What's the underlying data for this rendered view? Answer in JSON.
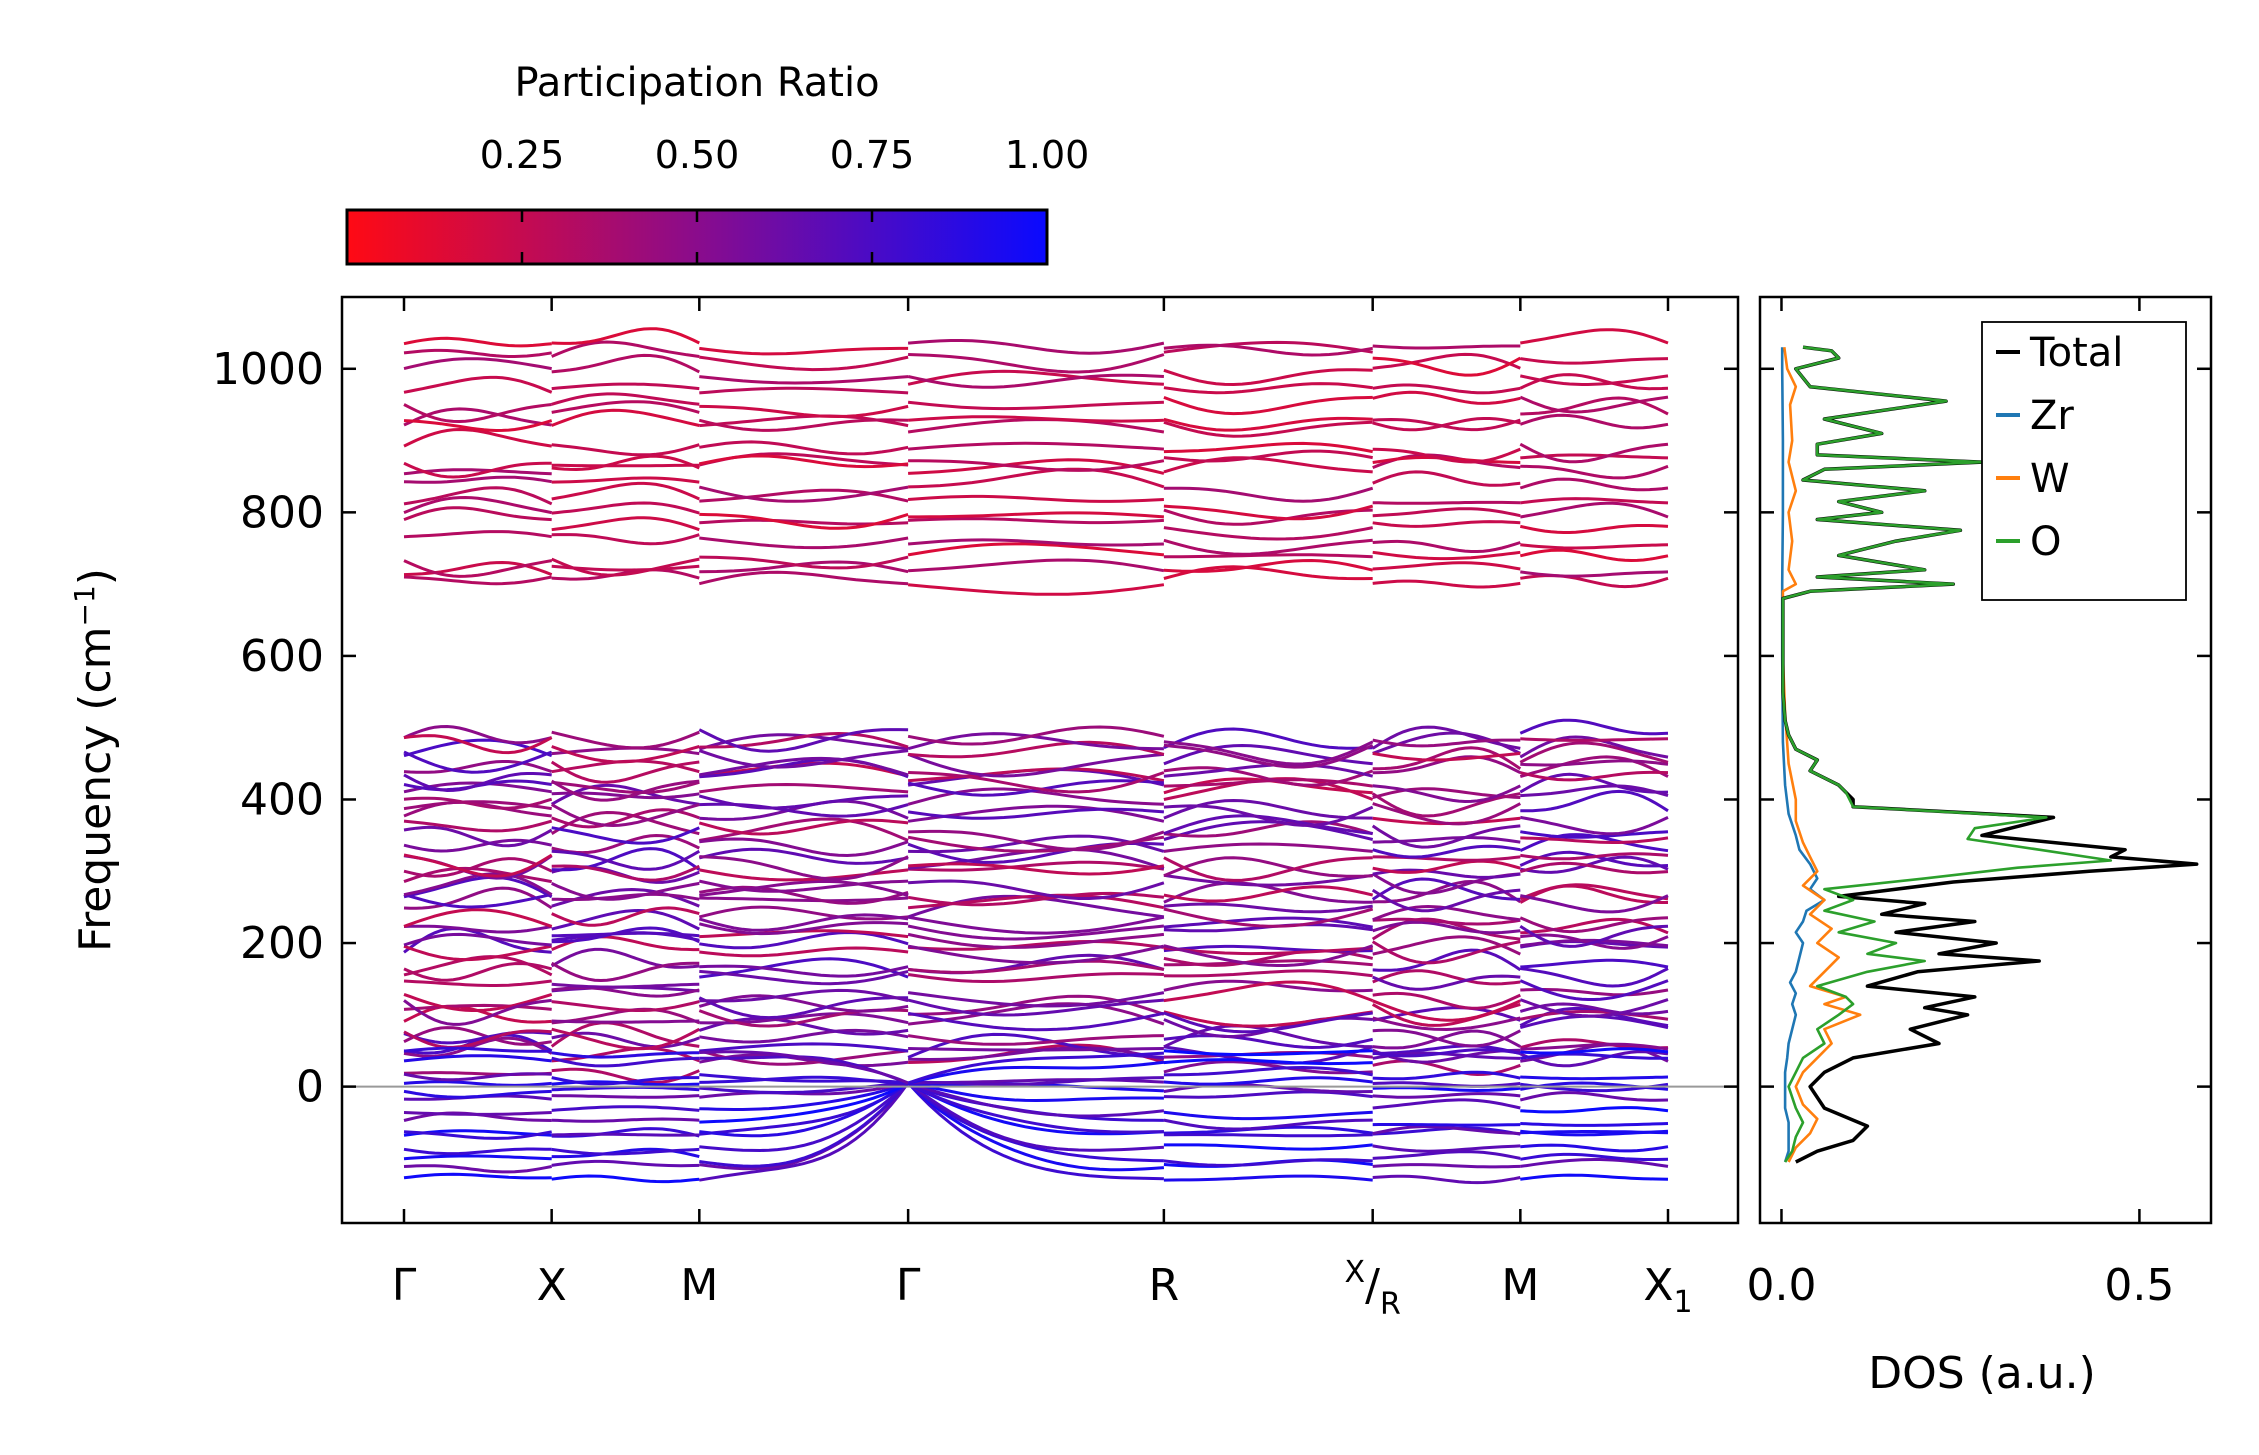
{
  "chart_data": [
    {
      "type": "line",
      "subtype": "phonon-dispersion",
      "title": "",
      "xlabel": "",
      "ylabel": "Frequency (cm",
      "ylabel_sup": "−1",
      "ylabel_close": ")",
      "ylim": [
        -190,
        1100
      ],
      "yticks": [
        0,
        200,
        400,
        600,
        800,
        1000
      ],
      "ytick_labels": [
        "0",
        "200",
        "400",
        "600",
        "800",
        "1000"
      ],
      "kpath": [
        {
          "label": "Γ",
          "sub": "",
          "pos": 0.0
        },
        {
          "label": "X",
          "sub": "",
          "pos": 0.5
        },
        {
          "label": "M",
          "sub": "",
          "pos": 1.0
        },
        {
          "label": "Γ",
          "sub": "",
          "pos": 1.7071
        },
        {
          "label": "R",
          "sub": "",
          "pos": 2.5731
        },
        {
          "label": "X/R",
          "sub": "",
          "pos": 3.2802
        },
        {
          "label": "M",
          "sub": "",
          "pos": 3.7802
        },
        {
          "label": "X",
          "sub": "1",
          "pos": 4.2802
        }
      ],
      "segments": [
        [
          0.0,
          0.5
        ],
        [
          0.5,
          1.0
        ],
        [
          1.0,
          1.7071
        ],
        [
          1.7071,
          2.5731
        ],
        [
          2.5731,
          3.2802
        ],
        [
          3.2802,
          3.7802
        ],
        [
          3.7802,
          4.2802
        ]
      ],
      "zero_line": 0,
      "color_variable": "Participation Ratio",
      "colorbar": {
        "title": "Participation Ratio",
        "range": [
          0.0,
          1.0
        ],
        "ticks": [
          0.25,
          0.5,
          0.75,
          1.0
        ],
        "tick_labels": [
          "0.25",
          "0.50",
          "0.75",
          "1.00"
        ],
        "color_low": "#ff0a14",
        "color_mid": "#8a0c8c",
        "color_high": "#0a0aff"
      },
      "bands_high": {
        "range": [
          690,
          1045
        ],
        "count": 18,
        "participation": [
          0.15,
          0.4
        ]
      },
      "bands_mid": {
        "range": [
          20,
          500
        ],
        "count": 40,
        "participation": [
          0.25,
          0.75
        ]
      },
      "bands_low": {
        "range": [
          -130,
          50
        ],
        "count": 14,
        "participation": [
          0.6,
          1.0
        ]
      }
    },
    {
      "type": "line",
      "subtype": "density-of-states",
      "xlabel": "DOS (a.u.)",
      "ylabel": "",
      "xlim": [
        -0.03,
        0.6
      ],
      "ylim": [
        -190,
        1100
      ],
      "xticks": [
        0.0,
        0.5
      ],
      "xtick_labels": [
        "0.0",
        "0.5"
      ],
      "legend_position": "top-right",
      "series": [
        {
          "name": "Total",
          "color": "#000000",
          "y": [
            -105,
            -90,
            -75,
            -55,
            -30,
            0,
            20,
            40,
            60,
            80,
            100,
            110,
            125,
            140,
            160,
            175,
            185,
            200,
            215,
            230,
            240,
            255,
            265,
            285,
            300,
            310,
            320,
            330,
            350,
            375,
            390,
            400,
            420,
            440,
            455,
            470,
            490,
            510,
            550,
            600,
            680,
            690,
            700,
            710,
            720,
            740,
            760,
            775,
            790,
            800,
            815,
            830,
            845,
            860,
            870,
            880,
            895,
            910,
            930,
            955,
            975,
            1000,
            1015,
            1025,
            1030
          ],
          "x": [
            0.02,
            0.05,
            0.1,
            0.12,
            0.06,
            0.04,
            0.06,
            0.1,
            0.22,
            0.18,
            0.26,
            0.2,
            0.27,
            0.12,
            0.19,
            0.36,
            0.22,
            0.3,
            0.16,
            0.27,
            0.14,
            0.2,
            0.08,
            0.24,
            0.43,
            0.58,
            0.46,
            0.48,
            0.28,
            0.38,
            0.1,
            0.1,
            0.08,
            0.04,
            0.05,
            0.02,
            0.01,
            0.005,
            0.002,
            0.002,
            0.002,
            0.04,
            0.24,
            0.05,
            0.2,
            0.08,
            0.16,
            0.25,
            0.05,
            0.14,
            0.08,
            0.2,
            0.03,
            0.06,
            0.28,
            0.05,
            0.05,
            0.14,
            0.06,
            0.23,
            0.04,
            0.02,
            0.08,
            0.07,
            0.03
          ]
        },
        {
          "name": "Zr",
          "color": "#1f77b4",
          "y": [
            -105,
            -90,
            -70,
            -50,
            -30,
            0,
            20,
            40,
            60,
            80,
            100,
            115,
            130,
            145,
            160,
            180,
            200,
            215,
            230,
            245,
            260,
            275,
            290,
            310,
            330,
            350,
            380,
            420,
            480,
            600,
            700,
            800,
            900,
            1000,
            1030
          ],
          "x": [
            0.005,
            0.01,
            0.01,
            0.01,
            0.005,
            0.005,
            0.005,
            0.008,
            0.01,
            0.015,
            0.02,
            0.015,
            0.02,
            0.012,
            0.02,
            0.025,
            0.03,
            0.02,
            0.03,
            0.035,
            0.06,
            0.04,
            0.05,
            0.04,
            0.025,
            0.02,
            0.01,
            0.005,
            0.002,
            0.001,
            0.001,
            0.002,
            0.002,
            0.001,
            0.001
          ]
        },
        {
          "name": "W",
          "color": "#ff7f0e",
          "y": [
            -105,
            -85,
            -65,
            -45,
            -25,
            0,
            20,
            40,
            60,
            80,
            100,
            115,
            125,
            140,
            160,
            180,
            200,
            220,
            240,
            260,
            280,
            300,
            320,
            340,
            370,
            400,
            450,
            520,
            600,
            690,
            700,
            720,
            760,
            800,
            830,
            870,
            900,
            950,
            975,
            1000,
            1030
          ],
          "x": [
            0.01,
            0.02,
            0.04,
            0.05,
            0.03,
            0.02,
            0.03,
            0.05,
            0.07,
            0.06,
            0.11,
            0.06,
            0.09,
            0.04,
            0.06,
            0.08,
            0.05,
            0.07,
            0.04,
            0.06,
            0.03,
            0.05,
            0.04,
            0.03,
            0.02,
            0.02,
            0.01,
            0.005,
            0.002,
            0.002,
            0.02,
            0.01,
            0.015,
            0.01,
            0.02,
            0.01,
            0.015,
            0.012,
            0.02,
            0.008,
            0.004
          ]
        },
        {
          "name": "O",
          "color": "#2ca02c",
          "y": [
            -105,
            -90,
            -70,
            -50,
            -30,
            0,
            20,
            40,
            60,
            80,
            100,
            115,
            125,
            140,
            160,
            175,
            185,
            200,
            215,
            230,
            245,
            260,
            275,
            290,
            305,
            315,
            330,
            345,
            360,
            375,
            390,
            410,
            420,
            440,
            455,
            470,
            490,
            510,
            550,
            600,
            680,
            690,
            700,
            710,
            720,
            740,
            760,
            775,
            790,
            800,
            815,
            830,
            845,
            860,
            870,
            880,
            895,
            910,
            930,
            955,
            975,
            1000,
            1015,
            1025,
            1030
          ],
          "x": [
            0.005,
            0.015,
            0.02,
            0.03,
            0.02,
            0.01,
            0.02,
            0.03,
            0.06,
            0.05,
            0.08,
            0.1,
            0.09,
            0.05,
            0.12,
            0.2,
            0.12,
            0.16,
            0.08,
            0.13,
            0.06,
            0.1,
            0.06,
            0.2,
            0.33,
            0.46,
            0.36,
            0.26,
            0.27,
            0.37,
            0.1,
            0.09,
            0.08,
            0.04,
            0.05,
            0.02,
            0.01,
            0.005,
            0.002,
            0.002,
            0.002,
            0.04,
            0.24,
            0.05,
            0.2,
            0.08,
            0.16,
            0.25,
            0.05,
            0.14,
            0.08,
            0.2,
            0.03,
            0.06,
            0.28,
            0.05,
            0.05,
            0.14,
            0.06,
            0.23,
            0.04,
            0.02,
            0.08,
            0.07,
            0.03
          ]
        }
      ]
    }
  ]
}
